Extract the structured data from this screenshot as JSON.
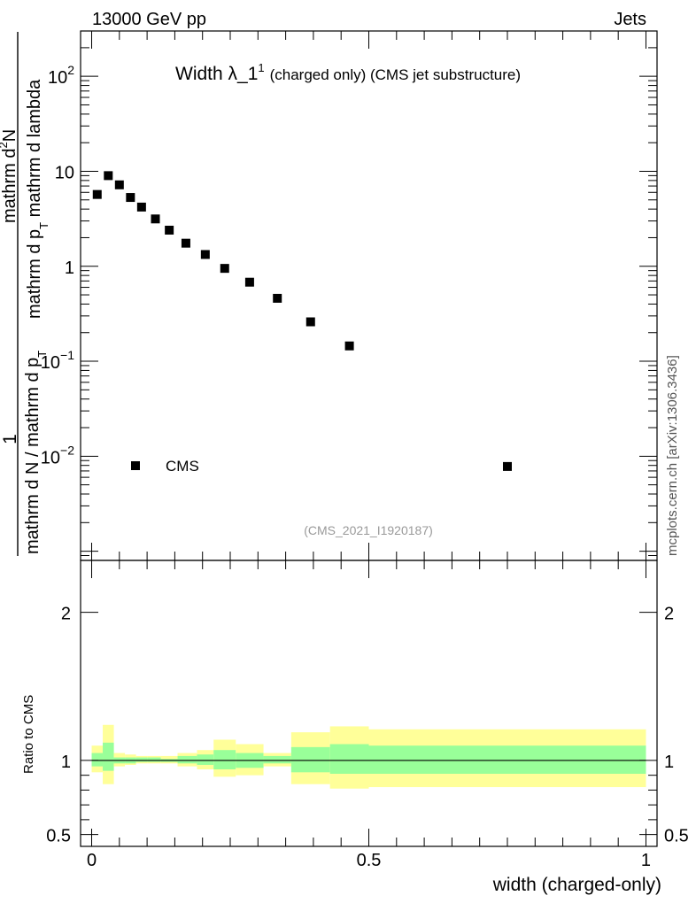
{
  "header": {
    "left": "13000 GeV pp",
    "right": "Jets"
  },
  "side_label": "mcplots.cern.ch [arXiv:1306.3436]",
  "chart_data": [
    {
      "type": "scatter",
      "panel": "main",
      "title_main": "Width λ_1",
      "title_sup": "1",
      "title_rest": "(charged only) (CMS jet substructure)",
      "ylabel_numerator": "1",
      "ylabel_den": "mathrm d N / mathrm d p",
      "ylabel_den_sub": "T",
      "ylabel_num2": "mathrm d",
      "ylabel_num2_sup": "2",
      "ylabel_num2_rest": "N",
      "ylabel_den2": "mathrm d p",
      "ylabel_den2_sub": "T",
      "ylabel_den2_rest": " mathrm d lambda",
      "yscale": "log",
      "ylim": [
        0.0008,
        300
      ],
      "xlim": [
        -0.02,
        1.02
      ],
      "y_tick_labels": [
        {
          "base": "10",
          "exp": "2",
          "value": 100
        },
        {
          "base": "10",
          "exp": "",
          "value": 10
        },
        {
          "base": "1",
          "exp": "",
          "value": 1
        },
        {
          "base": "10",
          "exp": "−1",
          "value": 0.1
        },
        {
          "base": "10",
          "exp": "−2",
          "value": 0.01
        }
      ],
      "legend": {
        "label": "CMS",
        "placement": "middle-left"
      },
      "watermark": "(CMS_2021_I1920187)",
      "series": [
        {
          "name": "CMS",
          "color": "#000000",
          "x": [
            0.01,
            0.03,
            0.05,
            0.07,
            0.09,
            0.115,
            0.14,
            0.17,
            0.205,
            0.24,
            0.285,
            0.335,
            0.395,
            0.465,
            0.75
          ],
          "y": [
            5.7,
            9.0,
            7.2,
            5.3,
            4.2,
            3.15,
            2.4,
            1.75,
            1.33,
            0.95,
            0.68,
            0.46,
            0.26,
            0.145,
            0.0078
          ]
        }
      ]
    },
    {
      "type": "area",
      "panel": "ratio",
      "ylabel": "Ratio to CMS",
      "ylim": [
        0.42,
        2.35
      ],
      "xlim": [
        -0.02,
        1.02
      ],
      "y_tick_labels": [
        {
          "label": "2",
          "value": 2
        },
        {
          "label": "1",
          "value": 1
        },
        {
          "label": "0.5",
          "value": 0.5
        }
      ],
      "x_tick_labels": [
        {
          "label": "0",
          "value": 0
        },
        {
          "label": "0.5",
          "value": 0.5
        },
        {
          "label": "1",
          "value": 1
        }
      ],
      "xlabel": "width (charged-only)",
      "colors": {
        "outer": "#ffff99",
        "inner": "#99ff99",
        "line": "#000000"
      },
      "bands": [
        {
          "x0": 0.0,
          "x1": 0.02,
          "inner": [
            0.96,
            1.05
          ],
          "outer": [
            0.92,
            1.1
          ]
        },
        {
          "x0": 0.02,
          "x1": 0.04,
          "inner": [
            0.93,
            1.12
          ],
          "outer": [
            0.84,
            1.24
          ]
        },
        {
          "x0": 0.04,
          "x1": 0.06,
          "inner": [
            0.98,
            1.02
          ],
          "outer": [
            0.96,
            1.05
          ]
        },
        {
          "x0": 0.06,
          "x1": 0.08,
          "inner": [
            0.98,
            1.02
          ],
          "outer": [
            0.97,
            1.04
          ]
        },
        {
          "x0": 0.08,
          "x1": 0.1,
          "inner": [
            0.99,
            1.02
          ],
          "outer": [
            0.98,
            1.03
          ]
        },
        {
          "x0": 0.1,
          "x1": 0.125,
          "inner": [
            0.99,
            1.02
          ],
          "outer": [
            0.98,
            1.03
          ]
        },
        {
          "x0": 0.125,
          "x1": 0.155,
          "inner": [
            0.99,
            1.01
          ],
          "outer": [
            0.98,
            1.03
          ]
        },
        {
          "x0": 0.155,
          "x1": 0.19,
          "inner": [
            0.98,
            1.03
          ],
          "outer": [
            0.96,
            1.05
          ]
        },
        {
          "x0": 0.19,
          "x1": 0.22,
          "inner": [
            0.97,
            1.04
          ],
          "outer": [
            0.94,
            1.07
          ]
        },
        {
          "x0": 0.22,
          "x1": 0.26,
          "inner": [
            0.94,
            1.07
          ],
          "outer": [
            0.89,
            1.14
          ]
        },
        {
          "x0": 0.26,
          "x1": 0.31,
          "inner": [
            0.95,
            1.05
          ],
          "outer": [
            0.9,
            1.11
          ]
        },
        {
          "x0": 0.31,
          "x1": 0.36,
          "inner": [
            0.98,
            1.03
          ],
          "outer": [
            0.96,
            1.05
          ]
        },
        {
          "x0": 0.36,
          "x1": 0.43,
          "inner": [
            0.92,
            1.09
          ],
          "outer": [
            0.84,
            1.19
          ]
        },
        {
          "x0": 0.43,
          "x1": 0.5,
          "inner": [
            0.91,
            1.11
          ],
          "outer": [
            0.81,
            1.23
          ]
        },
        {
          "x0": 0.5,
          "x1": 1.0,
          "inner": [
            0.91,
            1.1
          ],
          "outer": [
            0.82,
            1.21
          ]
        }
      ],
      "reference_value": 1.0
    }
  ]
}
